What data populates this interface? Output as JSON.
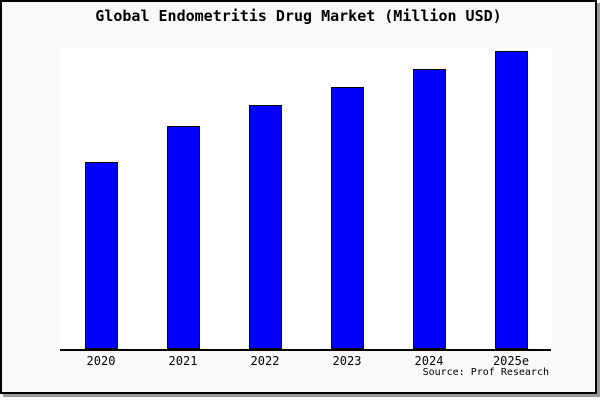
{
  "chart_data": {
    "type": "bar",
    "title": "Global Endometritis Drug Market (Million USD)",
    "categories": [
      "2020",
      "2021",
      "2022",
      "2023",
      "2024",
      "2025e"
    ],
    "values": [
      62,
      74,
      81,
      87,
      93,
      99
    ],
    "xlabel": "",
    "ylabel": "",
    "ylim": [
      0,
      100
    ],
    "grid": false,
    "legend": null,
    "y_axis_labels_shown": false,
    "bar_color": "#0000fc",
    "bar_border_color": "#000000",
    "plot_background": "#ffffff",
    "frame_background": "#f9f9f9",
    "frame_border_color": "#000000",
    "text_color": "#000000",
    "source": "Source: Prof Research"
  }
}
